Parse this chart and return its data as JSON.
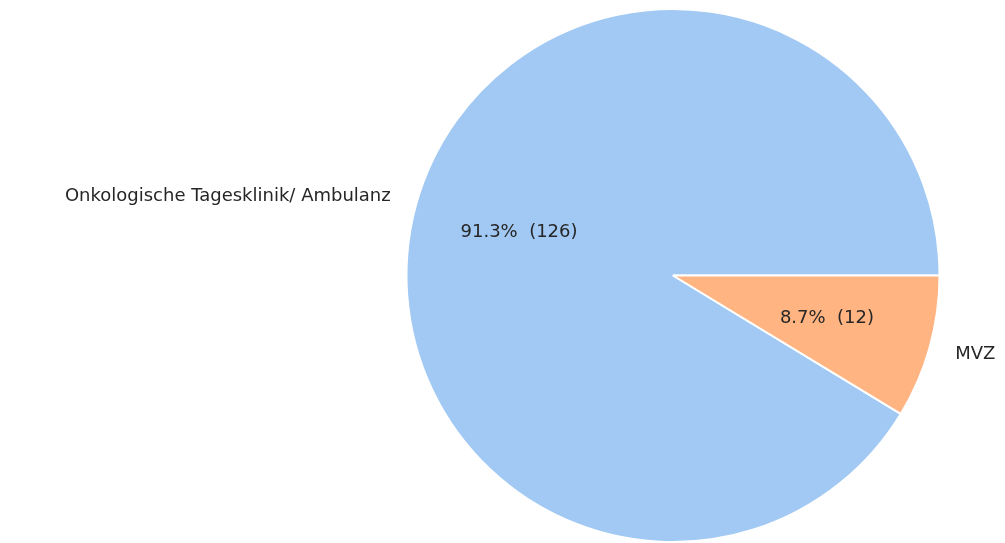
{
  "chart_data": {
    "type": "pie",
    "categories": [
      "Onkologische Tagesklinik/ Ambulanz",
      "MVZ"
    ],
    "values": [
      126,
      12
    ],
    "colors": [
      "#a1c9f4",
      "#ffb482"
    ],
    "value_labels": [
      "91.3%  (126)",
      "8.7%  (12)"
    ],
    "legend": false
  }
}
